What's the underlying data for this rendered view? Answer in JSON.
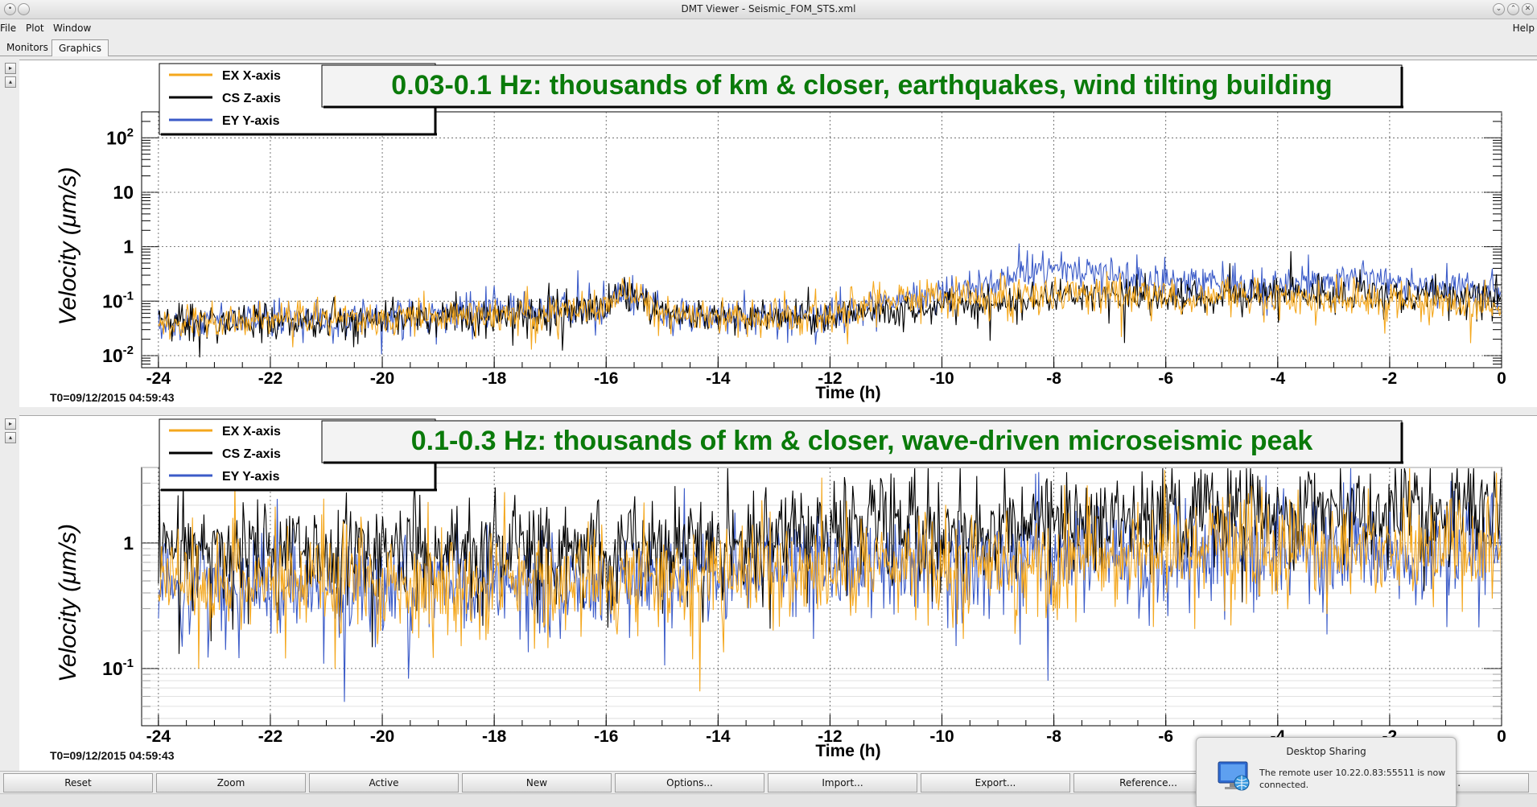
{
  "window": {
    "title": "DMT Viewer - Seismic_FOM_STS.xml"
  },
  "menu": {
    "items": [
      "File",
      "Plot",
      "Window"
    ],
    "help": "Help"
  },
  "tabs": [
    {
      "label": "Monitors",
      "active": false
    },
    {
      "label": "Graphics",
      "active": true
    }
  ],
  "colors": {
    "ex": "#f4a71d",
    "cs": "#000000",
    "ey": "#3b5bc8",
    "title_green": "#0a7a0a"
  },
  "chart_data": [
    {
      "type": "line",
      "title": "0.03-0.1 Hz: thousands of km & closer, earthquakes, wind tilting building",
      "xlabel": "Time (h)",
      "ylabel": "Velocity  (μm/s)",
      "xlim": [
        -24.3,
        0
      ],
      "xticks": [
        "-24",
        "-22",
        "-20",
        "-18",
        "-16",
        "-14",
        "-12",
        "-10",
        "-8",
        "-6",
        "-4",
        "-2",
        "0"
      ],
      "yscale": "log",
      "ylim": [
        0.006,
        300
      ],
      "yticks": [
        {
          "value": 100,
          "base": "10",
          "exp": "2"
        },
        {
          "value": 10,
          "base": "10",
          "exp": ""
        },
        {
          "value": 1,
          "base": "1",
          "exp": ""
        },
        {
          "value": 0.1,
          "base": "10",
          "exp": "-1"
        },
        {
          "value": 0.01,
          "base": "10",
          "exp": "-2"
        }
      ],
      "grid": true,
      "legend": [
        "EX X-axis",
        "CS Z-axis",
        "EY Y-axis"
      ],
      "t0": "T0=09/12/2015 04:59:43",
      "series": [
        {
          "name": "EX X-axis",
          "color_key": "ex",
          "x": [
            -24,
            -22,
            -20,
            -18,
            -16,
            -15.7,
            -15,
            -14,
            -12,
            -11,
            -10,
            -8,
            -6,
            -4,
            -2,
            0
          ],
          "y": [
            0.04,
            0.045,
            0.045,
            0.055,
            0.07,
            0.15,
            0.06,
            0.05,
            0.05,
            0.1,
            0.11,
            0.14,
            0.12,
            0.11,
            0.1,
            0.08
          ]
        },
        {
          "name": "CS Z-axis",
          "color_key": "cs",
          "x": [
            -24,
            -22,
            -20,
            -18,
            -16,
            -15.7,
            -15,
            -14,
            -12,
            -11,
            -10,
            -8,
            -6,
            -4,
            -2,
            0
          ],
          "y": [
            0.04,
            0.045,
            0.045,
            0.05,
            0.07,
            0.15,
            0.06,
            0.05,
            0.05,
            0.07,
            0.07,
            0.12,
            0.13,
            0.14,
            0.13,
            0.11
          ]
        },
        {
          "name": "EY Y-axis",
          "color_key": "ey",
          "x": [
            -24,
            -22,
            -20,
            -18,
            -16,
            -15.7,
            -15,
            -14,
            -12,
            -11,
            -10,
            -9,
            -8,
            -6,
            -4,
            -2,
            0
          ],
          "y": [
            0.04,
            0.045,
            0.05,
            0.07,
            0.07,
            0.15,
            0.06,
            0.05,
            0.05,
            0.09,
            0.13,
            0.25,
            0.4,
            0.22,
            0.2,
            0.25,
            0.15
          ]
        }
      ]
    },
    {
      "type": "line",
      "title": "0.1-0.3 Hz: thousands of km & closer, wave-driven microseismic peak",
      "xlabel": "Time (h)",
      "ylabel": "Velocity  (μm/s)",
      "xlim": [
        -24.3,
        0
      ],
      "xticks": [
        "-24",
        "-22",
        "-20",
        "-18",
        "-16",
        "-14",
        "-12",
        "-10",
        "-8",
        "-6",
        "-4",
        "-2",
        "0"
      ],
      "yscale": "log",
      "ylim": [
        0.035,
        4
      ],
      "yticks": [
        {
          "value": 1,
          "base": "1",
          "exp": ""
        },
        {
          "value": 0.1,
          "base": "10",
          "exp": "-1"
        }
      ],
      "grid": true,
      "legend": [
        "EX X-axis",
        "CS Z-axis",
        "EY Y-axis"
      ],
      "t0": "T0=09/12/2015 04:59:43",
      "series": [
        {
          "name": "EX X-axis",
          "color_key": "ex",
          "x": [
            -24,
            -20,
            -16,
            -14,
            -12,
            -10,
            -8,
            -6,
            -4,
            -2,
            0
          ],
          "y": [
            0.5,
            0.45,
            0.5,
            0.55,
            0.65,
            0.65,
            0.7,
            0.85,
            0.95,
            0.9,
            0.9
          ]
        },
        {
          "name": "CS Z-axis",
          "color_key": "cs",
          "x": [
            -24,
            -20,
            -16,
            -14,
            -12,
            -10,
            -8,
            -6,
            -4,
            -2,
            0
          ],
          "y": [
            0.85,
            0.85,
            0.9,
            1.0,
            1.2,
            1.3,
            1.4,
            1.6,
            1.7,
            1.8,
            1.8
          ]
        },
        {
          "name": "EY Y-axis",
          "color_key": "ey",
          "x": [
            -24,
            -20,
            -16,
            -14,
            -12,
            -10,
            -8,
            -6,
            -4,
            -2,
            0
          ],
          "y": [
            0.45,
            0.42,
            0.48,
            0.55,
            0.65,
            0.7,
            0.75,
            0.8,
            0.85,
            0.85,
            0.85
          ]
        }
      ]
    }
  ],
  "buttons": [
    "Reset",
    "Zoom",
    "Active",
    "New",
    "Options...",
    "Import...",
    "Export...",
    "Reference...",
    "",
    "t..."
  ],
  "notification": {
    "title": "Desktop Sharing",
    "message": "The remote user 10.22.0.83:55511 is now connected."
  }
}
